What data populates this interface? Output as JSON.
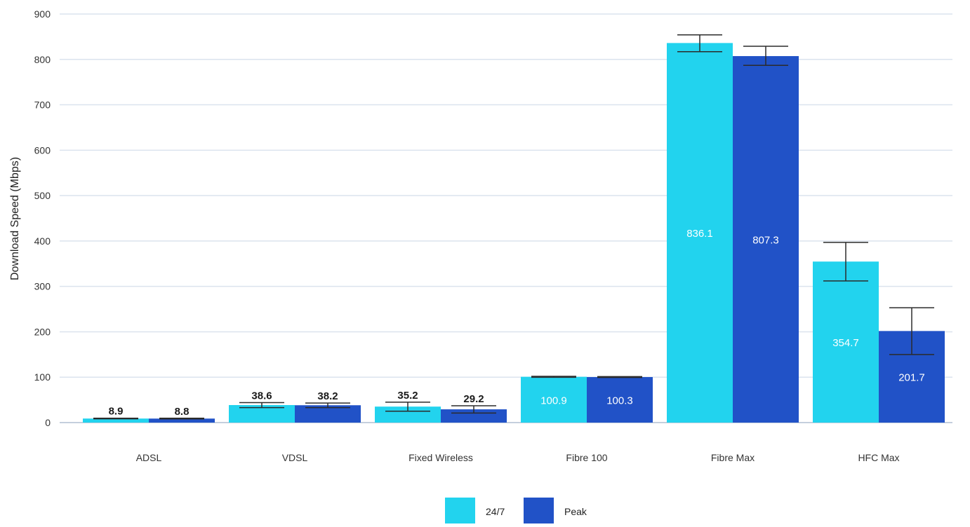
{
  "chart_data": {
    "type": "bar",
    "title": "",
    "xlabel": "",
    "ylabel": "Download Speed (Mbps)",
    "ylim": [
      0,
      900
    ],
    "yticks": [
      0,
      100,
      200,
      300,
      400,
      500,
      600,
      700,
      800,
      900
    ],
    "grid": true,
    "legend_position": "bottom",
    "categories": [
      "ADSL",
      "VDSL",
      "Fixed Wireless",
      "Fibre 100",
      "Fibre Max",
      "HFC Max"
    ],
    "series": [
      {
        "name": "24/7",
        "color": "#22d3ee",
        "values": [
          8.9,
          38.6,
          35.2,
          100.9,
          836.1,
          354.7
        ],
        "labels": [
          "8.9",
          "38.6",
          "35.2",
          "100.9",
          "836.1",
          "354.7"
        ],
        "error_low": [
          8.3,
          33,
          25,
          99.8,
          817,
          312
        ],
        "error_high": [
          9.7,
          44,
          45,
          101.8,
          854,
          397
        ]
      },
      {
        "name": "Peak",
        "color": "#2152c7",
        "values": [
          8.8,
          38.2,
          29.2,
          100.3,
          807.3,
          201.7
        ],
        "labels": [
          "8.8",
          "38.2",
          "29.2",
          "100.3",
          "807.3",
          "201.7"
        ],
        "error_low": [
          8.2,
          33,
          21,
          99.3,
          787,
          150
        ],
        "error_high": [
          9.6,
          43,
          37,
          101.3,
          829,
          253
        ]
      }
    ]
  }
}
